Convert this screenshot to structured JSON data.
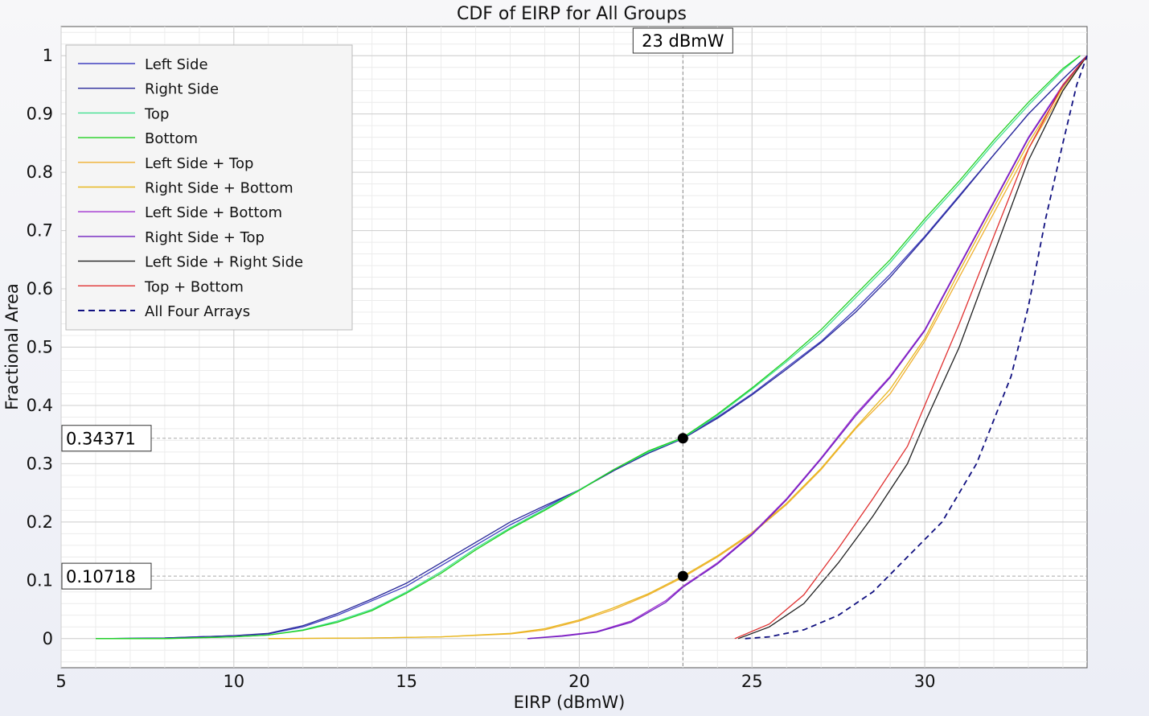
{
  "chart_data": {
    "type": "line",
    "title": "CDF of EIRP for All Groups",
    "xlabel": "EIRP (dBmW)",
    "ylabel": "Fractional Area",
    "xlim": [
      5,
      34.7
    ],
    "ylim": [
      -0.05,
      1.05
    ],
    "xticks": [
      5,
      10,
      15,
      20,
      25,
      30
    ],
    "yticks": [
      0,
      0.1,
      0.2,
      0.3,
      0.4,
      0.5,
      0.6,
      0.7,
      0.8,
      0.9,
      1
    ],
    "grid": true,
    "legend_position": "top-left",
    "series": [
      {
        "name": "Left Side",
        "color": "#4040c0",
        "dash": "solid",
        "points": [
          [
            6,
            0
          ],
          [
            8,
            0.001
          ],
          [
            10,
            0.005
          ],
          [
            11,
            0.008
          ],
          [
            12,
            0.02
          ],
          [
            13,
            0.04
          ],
          [
            14,
            0.065
          ],
          [
            15,
            0.09
          ],
          [
            16,
            0.125
          ],
          [
            17,
            0.16
          ],
          [
            18,
            0.195
          ],
          [
            19,
            0.225
          ],
          [
            20,
            0.255
          ],
          [
            21,
            0.29
          ],
          [
            22,
            0.32
          ],
          [
            23,
            0.345
          ],
          [
            24,
            0.38
          ],
          [
            25,
            0.42
          ],
          [
            26,
            0.465
          ],
          [
            27,
            0.51
          ],
          [
            28,
            0.565
          ],
          [
            29,
            0.625
          ],
          [
            30,
            0.69
          ],
          [
            31,
            0.76
          ],
          [
            32,
            0.83
          ],
          [
            33,
            0.9
          ],
          [
            34,
            0.96
          ],
          [
            34.7,
            1
          ]
        ]
      },
      {
        "name": "Right Side",
        "color": "#2a2a9a",
        "dash": "solid",
        "points": [
          [
            6,
            0
          ],
          [
            8,
            0.001
          ],
          [
            10,
            0.005
          ],
          [
            11,
            0.009
          ],
          [
            12,
            0.022
          ],
          [
            13,
            0.043
          ],
          [
            14,
            0.068
          ],
          [
            15,
            0.095
          ],
          [
            16,
            0.13
          ],
          [
            17,
            0.165
          ],
          [
            18,
            0.2
          ],
          [
            19,
            0.228
          ],
          [
            20,
            0.255
          ],
          [
            21,
            0.288
          ],
          [
            22,
            0.318
          ],
          [
            23,
            0.343
          ],
          [
            24,
            0.378
          ],
          [
            25,
            0.418
          ],
          [
            26,
            0.462
          ],
          [
            27,
            0.508
          ],
          [
            28,
            0.56
          ],
          [
            29,
            0.62
          ],
          [
            30,
            0.688
          ],
          [
            31,
            0.758
          ],
          [
            32,
            0.83
          ],
          [
            33,
            0.9
          ],
          [
            34,
            0.96
          ],
          [
            34.7,
            1
          ]
        ]
      },
      {
        "name": "Top",
        "color": "#40e090",
        "dash": "solid",
        "points": [
          [
            6,
            0
          ],
          [
            8,
            0
          ],
          [
            10,
            0.003
          ],
          [
            11,
            0.006
          ],
          [
            12,
            0.015
          ],
          [
            13,
            0.03
          ],
          [
            14,
            0.05
          ],
          [
            15,
            0.08
          ],
          [
            16,
            0.115
          ],
          [
            17,
            0.155
          ],
          [
            18,
            0.19
          ],
          [
            19,
            0.222
          ],
          [
            20,
            0.255
          ],
          [
            21,
            0.29
          ],
          [
            22,
            0.32
          ],
          [
            23,
            0.344
          ],
          [
            24,
            0.383
          ],
          [
            25,
            0.428
          ],
          [
            26,
            0.475
          ],
          [
            27,
            0.525
          ],
          [
            28,
            0.585
          ],
          [
            29,
            0.645
          ],
          [
            30,
            0.715
          ],
          [
            31,
            0.78
          ],
          [
            32,
            0.85
          ],
          [
            33,
            0.915
          ],
          [
            34,
            0.975
          ],
          [
            34.5,
            1
          ]
        ]
      },
      {
        "name": "Bottom",
        "color": "#20d020",
        "dash": "solid",
        "points": [
          [
            6,
            0
          ],
          [
            8,
            0
          ],
          [
            10,
            0.003
          ],
          [
            11,
            0.006
          ],
          [
            12,
            0.014
          ],
          [
            13,
            0.028
          ],
          [
            14,
            0.048
          ],
          [
            15,
            0.078
          ],
          [
            16,
            0.112
          ],
          [
            17,
            0.152
          ],
          [
            18,
            0.188
          ],
          [
            19,
            0.22
          ],
          [
            20,
            0.254
          ],
          [
            21,
            0.29
          ],
          [
            22,
            0.322
          ],
          [
            23,
            0.345
          ],
          [
            24,
            0.385
          ],
          [
            25,
            0.43
          ],
          [
            26,
            0.478
          ],
          [
            27,
            0.53
          ],
          [
            28,
            0.59
          ],
          [
            29,
            0.65
          ],
          [
            30,
            0.72
          ],
          [
            31,
            0.785
          ],
          [
            32,
            0.855
          ],
          [
            33,
            0.92
          ],
          [
            34,
            0.978
          ],
          [
            34.5,
            1
          ]
        ]
      },
      {
        "name": "Left Side + Top",
        "color": "#f0b030",
        "dash": "solid",
        "points": [
          [
            11,
            0
          ],
          [
            14,
            0.001
          ],
          [
            16,
            0.003
          ],
          [
            18,
            0.008
          ],
          [
            19,
            0.015
          ],
          [
            20,
            0.03
          ],
          [
            21,
            0.05
          ],
          [
            22,
            0.075
          ],
          [
            23,
            0.105
          ],
          [
            24,
            0.14
          ],
          [
            25,
            0.18
          ],
          [
            26,
            0.23
          ],
          [
            27,
            0.29
          ],
          [
            28,
            0.36
          ],
          [
            29,
            0.42
          ],
          [
            30,
            0.51
          ],
          [
            31,
            0.62
          ],
          [
            32,
            0.73
          ],
          [
            33,
            0.84
          ],
          [
            34,
            0.94
          ],
          [
            34.7,
            1
          ]
        ]
      },
      {
        "name": "Right Side + Bottom",
        "color": "#e8b820",
        "dash": "solid",
        "points": [
          [
            11,
            0
          ],
          [
            14,
            0.001
          ],
          [
            16,
            0.003
          ],
          [
            18,
            0.009
          ],
          [
            19,
            0.017
          ],
          [
            20,
            0.032
          ],
          [
            21,
            0.053
          ],
          [
            22,
            0.077
          ],
          [
            23,
            0.107
          ],
          [
            24,
            0.142
          ],
          [
            25,
            0.182
          ],
          [
            26,
            0.232
          ],
          [
            27,
            0.292
          ],
          [
            28,
            0.362
          ],
          [
            29,
            0.428
          ],
          [
            30,
            0.515
          ],
          [
            31,
            0.63
          ],
          [
            32,
            0.74
          ],
          [
            33,
            0.85
          ],
          [
            34,
            0.945
          ],
          [
            34.7,
            1
          ]
        ]
      },
      {
        "name": "Left Side + Bottom",
        "color": "#a030d0",
        "dash": "solid",
        "points": [
          [
            18.5,
            0
          ],
          [
            19.5,
            0.005
          ],
          [
            20.5,
            0.012
          ],
          [
            21.5,
            0.03
          ],
          [
            22.5,
            0.065
          ],
          [
            23,
            0.09
          ],
          [
            24,
            0.13
          ],
          [
            25,
            0.18
          ],
          [
            26,
            0.24
          ],
          [
            27,
            0.31
          ],
          [
            28,
            0.385
          ],
          [
            29,
            0.45
          ],
          [
            30,
            0.53
          ],
          [
            31,
            0.64
          ],
          [
            32,
            0.75
          ],
          [
            33,
            0.86
          ],
          [
            34,
            0.95
          ],
          [
            34.7,
            1
          ]
        ]
      },
      {
        "name": "Right Side + Top",
        "color": "#7020c0",
        "dash": "solid",
        "points": [
          [
            18.5,
            0
          ],
          [
            19.5,
            0.004
          ],
          [
            20.5,
            0.011
          ],
          [
            21.5,
            0.028
          ],
          [
            22.5,
            0.062
          ],
          [
            23,
            0.088
          ],
          [
            24,
            0.128
          ],
          [
            25,
            0.178
          ],
          [
            26,
            0.238
          ],
          [
            27,
            0.308
          ],
          [
            28,
            0.382
          ],
          [
            29,
            0.448
          ],
          [
            30,
            0.528
          ],
          [
            31,
            0.638
          ],
          [
            32,
            0.748
          ],
          [
            33,
            0.858
          ],
          [
            34,
            0.948
          ],
          [
            34.7,
            1
          ]
        ]
      },
      {
        "name": "Left Side + Right Side",
        "color": "#202020",
        "dash": "solid",
        "points": [
          [
            24.6,
            0
          ],
          [
            25.5,
            0.02
          ],
          [
            26.5,
            0.06
          ],
          [
            27.5,
            0.13
          ],
          [
            28.5,
            0.21
          ],
          [
            29.5,
            0.3
          ],
          [
            30,
            0.37
          ],
          [
            31,
            0.5
          ],
          [
            32,
            0.66
          ],
          [
            33,
            0.82
          ],
          [
            34,
            0.94
          ],
          [
            34.7,
            1
          ]
        ]
      },
      {
        "name": "Top + Bottom",
        "color": "#e03030",
        "dash": "solid",
        "points": [
          [
            24.5,
            0
          ],
          [
            25.5,
            0.025
          ],
          [
            26.5,
            0.075
          ],
          [
            27.5,
            0.155
          ],
          [
            28.5,
            0.24
          ],
          [
            29.5,
            0.33
          ],
          [
            30,
            0.4
          ],
          [
            31,
            0.54
          ],
          [
            32,
            0.69
          ],
          [
            33,
            0.84
          ],
          [
            34,
            0.95
          ],
          [
            34.7,
            1
          ]
        ]
      },
      {
        "name": "All Four Arrays",
        "color": "#101080",
        "dash": "dashed",
        "points": [
          [
            24.8,
            0
          ],
          [
            25.5,
            0.003
          ],
          [
            26.5,
            0.015
          ],
          [
            27.5,
            0.04
          ],
          [
            28.5,
            0.08
          ],
          [
            29.5,
            0.14
          ],
          [
            30.5,
            0.2
          ],
          [
            31.5,
            0.3
          ],
          [
            32.5,
            0.45
          ],
          [
            33,
            0.57
          ],
          [
            33.5,
            0.72
          ],
          [
            34,
            0.85
          ],
          [
            34.4,
            0.95
          ],
          [
            34.7,
            1
          ]
        ]
      }
    ],
    "annotations": {
      "vline": {
        "x": 23,
        "label": "23 dBmW"
      },
      "hlines": [
        {
          "y": 0.34371,
          "label": "0.34371"
        },
        {
          "y": 0.10718,
          "label": "0.10718"
        }
      ],
      "markers": [
        [
          23,
          0.34371
        ],
        [
          23,
          0.10718
        ]
      ]
    }
  }
}
